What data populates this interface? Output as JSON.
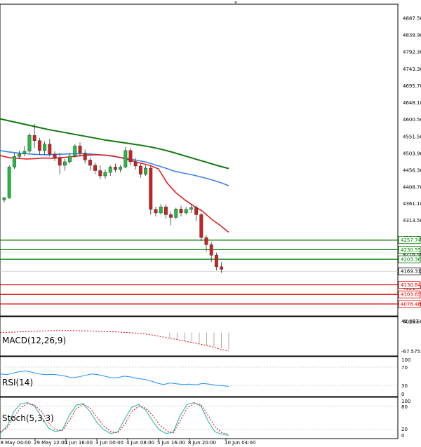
{
  "price_axis": {
    "ticks": [
      "4887.50",
      "4839.90",
      "4792.30",
      "4743.30",
      "4695.70",
      "4648.10",
      "4600.50",
      "4551.50",
      "4503.90",
      "4456.30",
      "4408.70",
      "4361.10",
      "4313.50",
      "4264.50",
      "4216.90",
      "4169.31",
      "4121.70",
      "4074.10",
      "4026.50"
    ],
    "tick_values": [
      4887.5,
      4839.9,
      4792.3,
      4743.3,
      4695.7,
      4648.1,
      4600.5,
      4551.5,
      4503.9,
      4456.3,
      4408.7,
      4361.1,
      4313.5,
      4264.5,
      4216.9,
      4169.31,
      4121.7,
      4074.1,
      4026.5
    ],
    "range": [
      4020,
      4910
    ]
  },
  "levels": [
    {
      "label": "4257.74",
      "value": 4257.74,
      "color": "#007a00"
    },
    {
      "label": "4230.55",
      "value": 4230.55,
      "color": "#007a00"
    },
    {
      "label": "4203.36",
      "value": 4203.36,
      "color": "#007a00"
    },
    {
      "label": "4130.84",
      "value": 4130.84,
      "color": "#e00000"
    },
    {
      "label": "4103.65",
      "value": 4103.65,
      "color": "#e00000"
    },
    {
      "label": "4076.46",
      "value": 4076.46,
      "color": "#e00000"
    }
  ],
  "current_price": {
    "label": "4169.31",
    "value": 4169.31
  },
  "time_axis": {
    "labels": [
      "28 May 04:00",
      "29 May 12:00",
      "1 Jun 16:00",
      "3 Jun 00:00",
      "4 Jun 08:00",
      "5 Jun 16:00",
      "8 Jun 20:00",
      "10 Jun 04:00"
    ],
    "positions": [
      -2,
      24,
      46,
      68,
      90,
      112,
      134,
      160
    ]
  },
  "candles": [
    {
      "o": 4372,
      "h": 4380,
      "c": 4378,
      "l": 4365
    },
    {
      "o": 4378,
      "h": 4470,
      "c": 4465,
      "l": 4375
    },
    {
      "o": 4465,
      "h": 4505,
      "c": 4495,
      "l": 4460
    },
    {
      "o": 4495,
      "h": 4512,
      "c": 4502,
      "l": 4490
    },
    {
      "o": 4502,
      "h": 4525,
      "c": 4510,
      "l": 4496
    },
    {
      "o": 4510,
      "h": 4562,
      "c": 4555,
      "l": 4505
    },
    {
      "o": 4555,
      "h": 4588,
      "c": 4540,
      "l": 4520
    },
    {
      "o": 4540,
      "h": 4548,
      "c": 4512,
      "l": 4500
    },
    {
      "o": 4512,
      "h": 4538,
      "c": 4530,
      "l": 4500
    },
    {
      "o": 4530,
      "h": 4545,
      "c": 4502,
      "l": 4495
    },
    {
      "o": 4502,
      "h": 4510,
      "c": 4490,
      "l": 4482
    },
    {
      "o": 4490,
      "h": 4505,
      "c": 4470,
      "l": 4445
    },
    {
      "o": 4470,
      "h": 4488,
      "c": 4480,
      "l": 4455
    },
    {
      "o": 4480,
      "h": 4505,
      "c": 4496,
      "l": 4475
    },
    {
      "o": 4496,
      "h": 4530,
      "c": 4525,
      "l": 4492
    },
    {
      "o": 4525,
      "h": 4535,
      "c": 4505,
      "l": 4495
    },
    {
      "o": 4505,
      "h": 4515,
      "c": 4485,
      "l": 4475
    },
    {
      "o": 4485,
      "h": 4492,
      "c": 4470,
      "l": 4455
    },
    {
      "o": 4470,
      "h": 4478,
      "c": 4455,
      "l": 4445
    },
    {
      "o": 4455,
      "h": 4470,
      "c": 4440,
      "l": 4430
    },
    {
      "o": 4440,
      "h": 4458,
      "c": 4450,
      "l": 4432
    },
    {
      "o": 4450,
      "h": 4470,
      "c": 4465,
      "l": 4440
    },
    {
      "o": 4465,
      "h": 4475,
      "c": 4458,
      "l": 4450
    },
    {
      "o": 4458,
      "h": 4470,
      "c": 4465,
      "l": 4450
    },
    {
      "o": 4465,
      "h": 4522,
      "c": 4512,
      "l": 4462
    },
    {
      "o": 4512,
      "h": 4520,
      "c": 4480,
      "l": 4470
    },
    {
      "o": 4480,
      "h": 4490,
      "c": 4468,
      "l": 4458
    },
    {
      "o": 4468,
      "h": 4475,
      "c": 4445,
      "l": 4435
    },
    {
      "o": 4445,
      "h": 4470,
      "c": 4462,
      "l": 4440
    },
    {
      "o": 4462,
      "h": 4470,
      "c": 4345,
      "l": 4330
    },
    {
      "o": 4345,
      "h": 4352,
      "c": 4335,
      "l": 4325
    },
    {
      "o": 4335,
      "h": 4360,
      "c": 4352,
      "l": 4330
    },
    {
      "o": 4352,
      "h": 4360,
      "c": 4330,
      "l": 4318
    },
    {
      "o": 4330,
      "h": 4338,
      "c": 4322,
      "l": 4300
    },
    {
      "o": 4322,
      "h": 4350,
      "c": 4346,
      "l": 4318
    },
    {
      "o": 4346,
      "h": 4355,
      "c": 4335,
      "l": 4325
    },
    {
      "o": 4335,
      "h": 4352,
      "c": 4345,
      "l": 4330
    },
    {
      "o": 4345,
      "h": 4358,
      "c": 4350,
      "l": 4335
    },
    {
      "o": 4350,
      "h": 4356,
      "c": 4330,
      "l": 4312
    },
    {
      "o": 4330,
      "h": 4335,
      "c": 4265,
      "l": 4255
    },
    {
      "o": 4265,
      "h": 4272,
      "c": 4245,
      "l": 4225
    },
    {
      "o": 4245,
      "h": 4252,
      "c": 4215,
      "l": 4195
    },
    {
      "o": 4215,
      "h": 4222,
      "c": 4182,
      "l": 4172
    },
    {
      "o": 4182,
      "h": 4195,
      "c": 4175,
      "l": 4165
    }
  ],
  "ma_green": [
    4602,
    4596,
    4590,
    4584,
    4578,
    4572,
    4567,
    4562,
    4557,
    4552,
    4547,
    4542,
    4538,
    4534,
    4530,
    4526,
    4521,
    4515,
    4508,
    4500,
    4492,
    4484,
    4476,
    4468,
    4461
  ],
  "ma_blue": [
    4512,
    4508,
    4505,
    4503,
    4501,
    4500,
    4501,
    4502,
    4503,
    4503,
    4502,
    4500,
    4497,
    4493,
    4489,
    4484,
    4479,
    4471,
    4463,
    4454,
    4448,
    4443,
    4437,
    4430,
    4422,
    4412
  ],
  "ma_red": [
    4498,
    4492,
    4490,
    4488,
    4489,
    4491,
    4490,
    4492,
    4494,
    4497,
    4499,
    4500,
    4499,
    4496,
    4490,
    4483,
    4476,
    4470,
    4460,
    4420,
    4392,
    4372,
    4355,
    4340,
    4318,
    4300,
    4280
  ],
  "macd": {
    "title": "MACD(12,26,9)",
    "ticks": [
      "41.493",
      "-67.575"
    ],
    "signal": [
      0.6,
      1.2,
      2.0,
      3.0,
      4.0,
      5.0,
      6.0,
      7.0,
      7.5,
      7.5,
      7.0,
      6.5,
      6.0,
      5.0,
      4.0,
      3.0,
      2.0,
      0.5,
      -1.0,
      -3.0,
      -6.0,
      -10.0,
      -15.0,
      -20.0,
      -25.0,
      -30.0,
      -35.0,
      -40.0,
      -45.0,
      -52.0,
      -60.0,
      -65.0
    ],
    "histogram": [
      0,
      0,
      0,
      0,
      0,
      0,
      0,
      0,
      0,
      0,
      0,
      0,
      0,
      0,
      0,
      0,
      0,
      0,
      0,
      0,
      0,
      0,
      0,
      -20,
      -25,
      -30,
      -35,
      -40,
      -45,
      -50,
      -55,
      -60
    ]
  },
  "rsi": {
    "title": "RSI(14)",
    "ticks": [
      "100",
      "70",
      "30",
      "0"
    ],
    "values": [
      58,
      56,
      60,
      64,
      66,
      62,
      58,
      56,
      57,
      55,
      52,
      48,
      50,
      54,
      58,
      56,
      52,
      48,
      48,
      52,
      50,
      46,
      44,
      40,
      34,
      30,
      34,
      32,
      30,
      31,
      29,
      33,
      31,
      28,
      27,
      25
    ]
  },
  "stoch": {
    "title": "Stoch(5,3,3)",
    "ticks": [
      "100",
      "80",
      "20",
      "0"
    ],
    "main": [
      10,
      30,
      70,
      92,
      95,
      85,
      55,
      25,
      15,
      20,
      60,
      88,
      92,
      70,
      40,
      20,
      10,
      15,
      50,
      82,
      90,
      75,
      45,
      20,
      10,
      14,
      60,
      90,
      95,
      85,
      45,
      15,
      8,
      5
    ],
    "signal": [
      15,
      25,
      55,
      82,
      92,
      88,
      70,
      40,
      20,
      18,
      45,
      78,
      90,
      80,
      55,
      30,
      15,
      12,
      35,
      70,
      85,
      80,
      60,
      35,
      18,
      12,
      45,
      80,
      92,
      90,
      60,
      30,
      12,
      8
    ]
  }
}
